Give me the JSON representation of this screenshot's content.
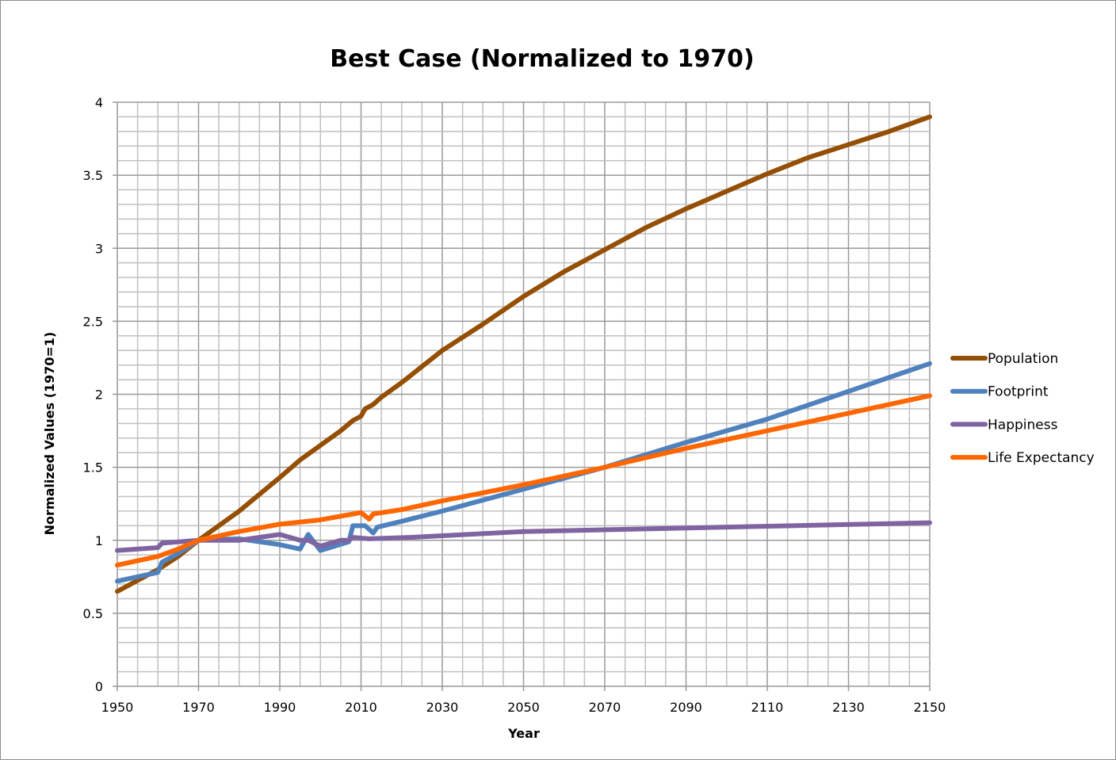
{
  "chart_data": {
    "type": "line",
    "title": "Best Case (Normalized to 1970)",
    "xlabel": "Year",
    "ylabel": "Normalized Values (1970=1)",
    "xlim": [
      1950,
      2150
    ],
    "ylim": [
      0,
      4
    ],
    "x_ticks": [
      "1950",
      "1970",
      "1990",
      "2010",
      "2030",
      "2050",
      "2070",
      "2090",
      "2110",
      "2130",
      "2150"
    ],
    "y_ticks": [
      "0",
      "0.5",
      "1",
      "1.5",
      "2",
      "2.5",
      "3",
      "3.5",
      "4"
    ],
    "grid": true,
    "legend_position": "right",
    "series": [
      {
        "name": "Population",
        "color": "#954F05",
        "points": [
          [
            1950,
            0.65
          ],
          [
            1960,
            0.8
          ],
          [
            1965,
            0.89
          ],
          [
            1970,
            1.0
          ],
          [
            1980,
            1.2
          ],
          [
            1990,
            1.43
          ],
          [
            1995,
            1.55
          ],
          [
            2000,
            1.65
          ],
          [
            2005,
            1.75
          ],
          [
            2008,
            1.82
          ],
          [
            2010,
            1.85
          ],
          [
            2011,
            1.9
          ],
          [
            2013,
            1.93
          ],
          [
            2015,
            1.98
          ],
          [
            2020,
            2.08
          ],
          [
            2030,
            2.3
          ],
          [
            2040,
            2.48
          ],
          [
            2050,
            2.67
          ],
          [
            2060,
            2.84
          ],
          [
            2070,
            2.99
          ],
          [
            2080,
            3.14
          ],
          [
            2090,
            3.27
          ],
          [
            2100,
            3.39
          ],
          [
            2110,
            3.51
          ],
          [
            2120,
            3.62
          ],
          [
            2130,
            3.71
          ],
          [
            2140,
            3.8
          ],
          [
            2150,
            3.9
          ]
        ]
      },
      {
        "name": "Footprint",
        "color": "#4F81BD",
        "points": [
          [
            1950,
            0.72
          ],
          [
            1960,
            0.78
          ],
          [
            1961,
            0.85
          ],
          [
            1965,
            0.91
          ],
          [
            1970,
            1.0
          ],
          [
            1980,
            1.01
          ],
          [
            1990,
            0.97
          ],
          [
            1995,
            0.94
          ],
          [
            1997,
            1.04
          ],
          [
            2000,
            0.93
          ],
          [
            2007,
            0.99
          ],
          [
            2008,
            1.1
          ],
          [
            2011,
            1.1
          ],
          [
            2013,
            1.05
          ],
          [
            2014,
            1.09
          ],
          [
            2020,
            1.13
          ],
          [
            2030,
            1.2
          ],
          [
            2050,
            1.35
          ],
          [
            2070,
            1.5
          ],
          [
            2090,
            1.67
          ],
          [
            2110,
            1.83
          ],
          [
            2130,
            2.02
          ],
          [
            2150,
            2.21
          ]
        ]
      },
      {
        "name": "Happiness",
        "color": "#8064A2",
        "points": [
          [
            1950,
            0.93
          ],
          [
            1960,
            0.95
          ],
          [
            1961,
            0.98
          ],
          [
            1970,
            1.0
          ],
          [
            1980,
            1.0
          ],
          [
            1990,
            1.04
          ],
          [
            1995,
            1.0
          ],
          [
            1997,
            1.0
          ],
          [
            2000,
            0.96
          ],
          [
            2005,
            1.0
          ],
          [
            2007,
            1.0
          ],
          [
            2008,
            1.02
          ],
          [
            2012,
            1.01
          ],
          [
            2022,
            1.02
          ],
          [
            2050,
            1.06
          ],
          [
            2100,
            1.09
          ],
          [
            2150,
            1.12
          ]
        ]
      },
      {
        "name": "Life Expectancy",
        "color": "#FF6600",
        "points": [
          [
            1950,
            0.83
          ],
          [
            1960,
            0.89
          ],
          [
            1965,
            0.94
          ],
          [
            1970,
            1.0
          ],
          [
            1980,
            1.06
          ],
          [
            1990,
            1.11
          ],
          [
            2000,
            1.14
          ],
          [
            2010,
            1.19
          ],
          [
            2012,
            1.145
          ],
          [
            2013,
            1.18
          ],
          [
            2020,
            1.21
          ],
          [
            2030,
            1.27
          ],
          [
            2050,
            1.38
          ],
          [
            2070,
            1.5
          ],
          [
            2090,
            1.63
          ],
          [
            2110,
            1.75
          ],
          [
            2130,
            1.87
          ],
          [
            2150,
            1.99
          ]
        ]
      }
    ]
  }
}
